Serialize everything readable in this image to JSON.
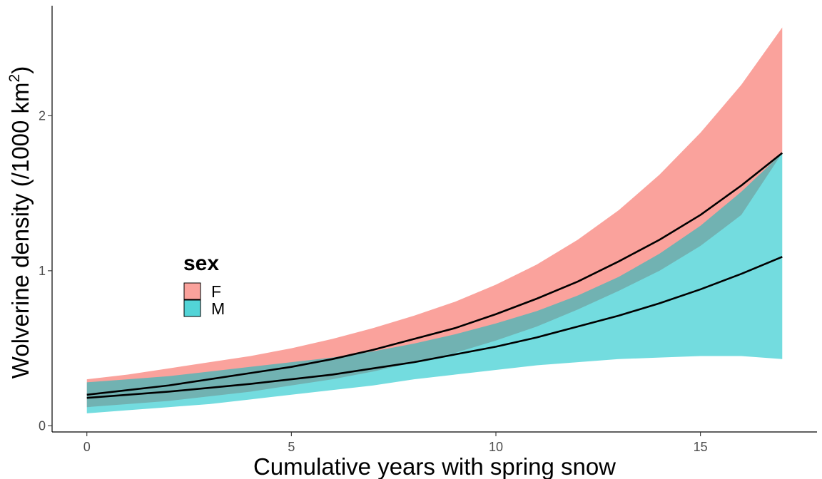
{
  "chart_data": {
    "type": "area",
    "title": "",
    "xlabel": "Cumulative years with spring snow",
    "ylabel_main": "Wolverine density (/1000 km",
    "ylabel_sup": "2",
    "ylabel_close": ")",
    "xlim": [
      -0.85,
      17.85
    ],
    "ylim": [
      -0.04,
      2.71
    ],
    "x_ticks": [
      0,
      5,
      10,
      15
    ],
    "x_tick_labels": [
      "0",
      "5",
      "10",
      "15"
    ],
    "y_ticks": [
      0,
      1,
      2
    ],
    "y_tick_labels": [
      "0",
      "1",
      "2"
    ],
    "grid": false,
    "legend": {
      "title": "sex",
      "placement": "inside-left",
      "entries": [
        {
          "label": "F",
          "color": "#F8766D"
        },
        {
          "label": "M",
          "color": "#00BFC4"
        }
      ]
    },
    "x": [
      0,
      1,
      2,
      3,
      4,
      5,
      6,
      7,
      8,
      9,
      10,
      11,
      12,
      13,
      14,
      15,
      16,
      17
    ],
    "series": [
      {
        "name": "F",
        "color": "#F8766D",
        "fill_opacity": 0.68,
        "mean": [
          0.2,
          0.23,
          0.26,
          0.3,
          0.34,
          0.38,
          0.43,
          0.49,
          0.56,
          0.63,
          0.72,
          0.82,
          0.93,
          1.06,
          1.2,
          1.36,
          1.55,
          1.76
        ],
        "lower": [
          0.12,
          0.14,
          0.16,
          0.19,
          0.22,
          0.26,
          0.3,
          0.35,
          0.41,
          0.47,
          0.55,
          0.64,
          0.75,
          0.87,
          1.0,
          1.16,
          1.36,
          1.76
        ],
        "upper": [
          0.3,
          0.33,
          0.37,
          0.41,
          0.45,
          0.5,
          0.56,
          0.63,
          0.71,
          0.8,
          0.91,
          1.04,
          1.2,
          1.39,
          1.62,
          1.89,
          2.2,
          2.57
        ]
      },
      {
        "name": "M",
        "color": "#00BFC4",
        "fill_opacity": 0.55,
        "mean": [
          0.18,
          0.2,
          0.22,
          0.245,
          0.27,
          0.3,
          0.33,
          0.37,
          0.41,
          0.46,
          0.51,
          0.57,
          0.64,
          0.71,
          0.79,
          0.88,
          0.98,
          1.09
        ],
        "lower": [
          0.08,
          0.1,
          0.12,
          0.14,
          0.17,
          0.2,
          0.23,
          0.26,
          0.3,
          0.33,
          0.36,
          0.39,
          0.41,
          0.43,
          0.44,
          0.45,
          0.45,
          0.43
        ],
        "upper": [
          0.28,
          0.3,
          0.32,
          0.35,
          0.38,
          0.41,
          0.44,
          0.48,
          0.53,
          0.59,
          0.66,
          0.74,
          0.84,
          0.96,
          1.11,
          1.29,
          1.51,
          1.76
        ]
      }
    ]
  }
}
